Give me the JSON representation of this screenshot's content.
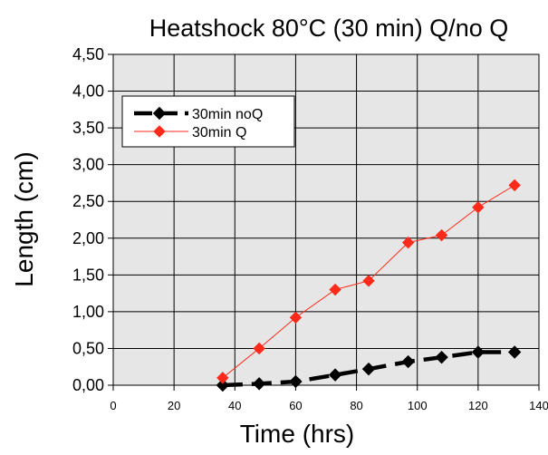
{
  "chart_data": {
    "type": "line",
    "title": "Heatshock 80°C (30 min) Q/no Q",
    "xlabel": "Time (hrs)",
    "ylabel": "Length (cm)",
    "xlim": [
      0,
      140
    ],
    "ylim": [
      0,
      4.5
    ],
    "x_ticks": [
      0,
      20,
      40,
      60,
      80,
      100,
      120,
      140
    ],
    "x_tick_labels": [
      "0",
      "20",
      "40",
      "60",
      "80",
      "100",
      "120",
      "140"
    ],
    "y_ticks": [
      0,
      0.5,
      1,
      1.5,
      2,
      2.5,
      3,
      3.5,
      4,
      4.5
    ],
    "y_tick_labels": [
      "0,00",
      "0,50",
      "1,00",
      "1,50",
      "2,00",
      "2,50",
      "3,00",
      "3,50",
      "4,00",
      "4,50"
    ],
    "grid": true,
    "legend_position": "upper-left",
    "plot_background": "#e6e6e6",
    "series": [
      {
        "name": "30min noQ",
        "color": "#000000",
        "line_style": "dashed",
        "marker": "diamond",
        "x": [
          36,
          48,
          60,
          73,
          84,
          97,
          108,
          120,
          132
        ],
        "y": [
          0.0,
          0.02,
          0.05,
          0.14,
          0.22,
          0.32,
          0.38,
          0.45,
          0.45
        ]
      },
      {
        "name": "30min Q",
        "color": "#ff2a1a",
        "line_style": "solid",
        "marker": "diamond",
        "x": [
          36,
          48,
          60,
          73,
          84,
          97,
          108,
          120,
          132
        ],
        "y": [
          0.1,
          0.5,
          0.92,
          1.3,
          1.42,
          1.94,
          2.04,
          2.42,
          2.72
        ]
      }
    ]
  }
}
